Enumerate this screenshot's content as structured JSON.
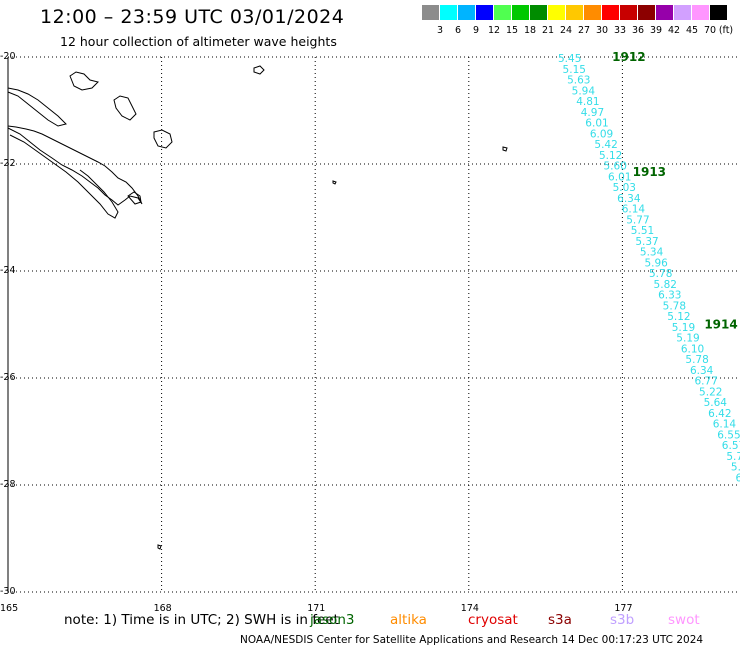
{
  "header": {
    "title": "12:00 – 23:59 UTC 03/01/2024",
    "subtitle": "12 hour collection of altimeter wave heights"
  },
  "legend": {
    "colors": [
      "#8c8c8c",
      "#00ffff",
      "#00b4ff",
      "#0000ff",
      "#50ff50",
      "#00c800",
      "#008c00",
      "#ffff00",
      "#ffc800",
      "#ff8c00",
      "#ff0000",
      "#c80000",
      "#8c0000",
      "#9600aa",
      "#d2a0ff",
      "#ff96ff",
      "#000000"
    ],
    "labels": [
      "3",
      "6",
      "9",
      "12",
      "15",
      "18",
      "21",
      "24",
      "27",
      "30",
      "33",
      "36",
      "39",
      "42",
      "45",
      "70",
      "(ft)"
    ]
  },
  "map": {
    "lat_labels": [
      "-20",
      "-22",
      "-24",
      "-26",
      "-28",
      "-30"
    ],
    "lon_labels": [
      "165",
      "168",
      "171",
      "174",
      "177"
    ],
    "track_color": "#33dde8",
    "label_color": "#006400"
  },
  "chart_data": {
    "type": "scatter",
    "title": "12:00 – 23:59 UTC 03/01/2024",
    "xlabel": "",
    "ylabel": "",
    "xlim": [
      165,
      179.5
    ],
    "ylim": [
      -30,
      -20
    ],
    "swh_ft": [
      "5.45",
      "5.15",
      "5.63",
      "5.94",
      "4.81",
      "4.97",
      "6.01",
      "6.09",
      "5.42",
      "5.12",
      "5.60",
      "6.01",
      "5.03",
      "6.34",
      "6.14",
      "5.77",
      "5.51",
      "5.37",
      "5.34",
      "5.96",
      "5.78",
      "5.82",
      "6.33",
      "5.78",
      "5.12",
      "5.19",
      "5.19",
      "6.10",
      "5.78",
      "6.34",
      "6.77",
      "5.22",
      "5.64",
      "6.42",
      "6.14",
      "6.55",
      "6.57",
      "5.7",
      "5.",
      "6"
    ],
    "time_labels": [
      {
        "text": "1912",
        "lon": 176.8,
        "lat": -20.0
      },
      {
        "text": "1913",
        "lon": 177.2,
        "lat": -22.15
      },
      {
        "text": "1914",
        "lon": 178.6,
        "lat": -25.0
      }
    ]
  },
  "footer": {
    "note": "note:  1) Time is in UTC;  2) SWH is in feet",
    "satellites": [
      {
        "name": "jason3",
        "color": "#006400"
      },
      {
        "name": "altika",
        "color": "#ff8c00"
      },
      {
        "name": "cryosat",
        "color": "#e00000"
      },
      {
        "name": "s3a",
        "color": "#8b0000"
      },
      {
        "name": "s3b",
        "color": "#c0a0ff"
      },
      {
        "name": "swot",
        "color": "#ff96ff"
      }
    ],
    "credit": "NOAA/NESDIS Center for Satellite Applications and Research    14 Dec 00:17:23 UTC 2024"
  }
}
